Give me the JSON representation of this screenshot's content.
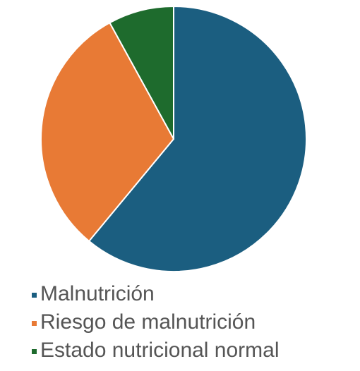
{
  "chart_data": {
    "type": "pie",
    "categories": [
      "Malnutrición",
      "Riesgo de malnutrición",
      "Estado nutricional normal"
    ],
    "values": [
      61,
      31,
      8
    ],
    "colors": [
      "#1b5e80",
      "#e87a35",
      "#1e6b2d"
    ],
    "legend": "bottom"
  }
}
